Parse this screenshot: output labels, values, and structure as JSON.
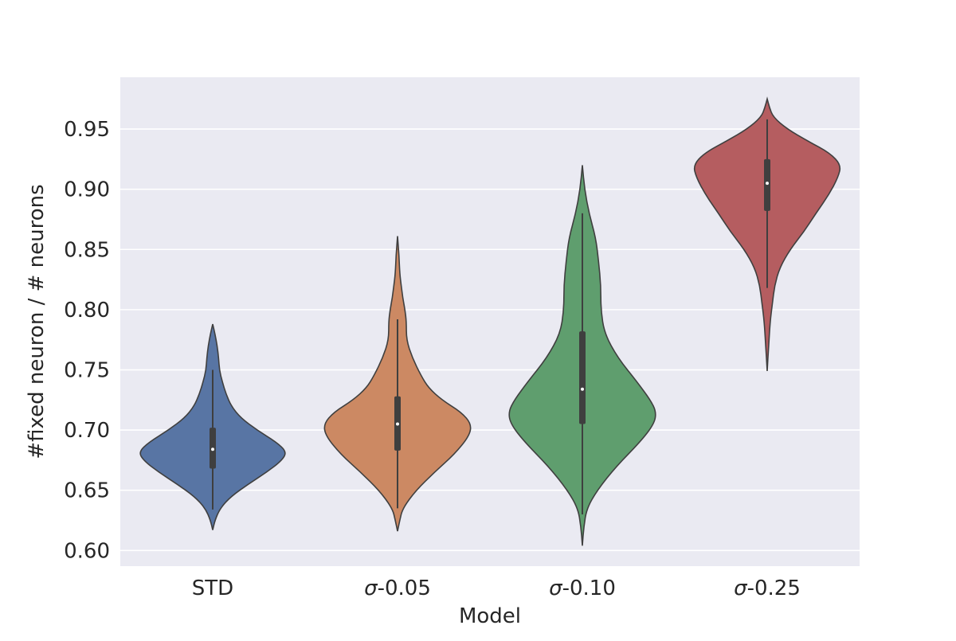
{
  "chart_data": {
    "type": "violin",
    "title": "",
    "xlabel": "Model",
    "ylabel": "#fixed neuron / # neurons",
    "ylim": [
      0.587,
      0.993
    ],
    "yticks": [
      "0.60",
      "0.65",
      "0.70",
      "0.75",
      "0.80",
      "0.85",
      "0.90",
      "0.95"
    ],
    "grid": true,
    "legend": "none",
    "background": "#eaeaf2",
    "categories": [
      {
        "label": "STD",
        "color": "#5875a4",
        "range": [
          0.617,
          0.788
        ],
        "box": {
          "q1": 0.668,
          "median": 0.684,
          "q3": 0.702,
          "whisker_low": 0.634,
          "whisker_high": 0.75
        },
        "profile": [
          [
            0.617,
            0.0
          ],
          [
            0.625,
            0.03
          ],
          [
            0.635,
            0.1
          ],
          [
            0.645,
            0.25
          ],
          [
            0.655,
            0.48
          ],
          [
            0.665,
            0.73
          ],
          [
            0.675,
            0.94
          ],
          [
            0.682,
            1.0
          ],
          [
            0.69,
            0.86
          ],
          [
            0.7,
            0.6
          ],
          [
            0.71,
            0.38
          ],
          [
            0.72,
            0.25
          ],
          [
            0.73,
            0.18
          ],
          [
            0.74,
            0.13
          ],
          [
            0.75,
            0.09
          ],
          [
            0.76,
            0.08
          ],
          [
            0.77,
            0.06
          ],
          [
            0.78,
            0.03
          ],
          [
            0.788,
            0.0
          ]
        ]
      },
      {
        "label": "σ-0.05",
        "color": "#cc8963",
        "range": [
          0.616,
          0.861
        ],
        "box": {
          "q1": 0.683,
          "median": 0.705,
          "q3": 0.728,
          "whisker_low": 0.635,
          "whisker_high": 0.792
        },
        "profile": [
          [
            0.616,
            0.0
          ],
          [
            0.625,
            0.03
          ],
          [
            0.635,
            0.07
          ],
          [
            0.65,
            0.25
          ],
          [
            0.665,
            0.5
          ],
          [
            0.68,
            0.77
          ],
          [
            0.695,
            0.97
          ],
          [
            0.705,
            1.0
          ],
          [
            0.715,
            0.86
          ],
          [
            0.725,
            0.6
          ],
          [
            0.735,
            0.42
          ],
          [
            0.745,
            0.32
          ],
          [
            0.76,
            0.2
          ],
          [
            0.775,
            0.12
          ],
          [
            0.79,
            0.12
          ],
          [
            0.8,
            0.1
          ],
          [
            0.81,
            0.07
          ],
          [
            0.82,
            0.05
          ],
          [
            0.83,
            0.03
          ],
          [
            0.845,
            0.02
          ],
          [
            0.861,
            0.0
          ]
        ]
      },
      {
        "label": "σ-0.10",
        "color": "#5f9e6e",
        "range": [
          0.604,
          0.92
        ],
        "box": {
          "q1": 0.705,
          "median": 0.734,
          "q3": 0.782,
          "whisker_low": 0.63,
          "whisker_high": 0.88
        },
        "profile": [
          [
            0.604,
            0.0
          ],
          [
            0.62,
            0.02
          ],
          [
            0.635,
            0.06
          ],
          [
            0.65,
            0.2
          ],
          [
            0.67,
            0.46
          ],
          [
            0.69,
            0.78
          ],
          [
            0.705,
            0.97
          ],
          [
            0.715,
            1.0
          ],
          [
            0.725,
            0.92
          ],
          [
            0.74,
            0.74
          ],
          [
            0.76,
            0.48
          ],
          [
            0.78,
            0.3
          ],
          [
            0.8,
            0.25
          ],
          [
            0.82,
            0.25
          ],
          [
            0.84,
            0.22
          ],
          [
            0.86,
            0.18
          ],
          [
            0.88,
            0.09
          ],
          [
            0.9,
            0.03
          ],
          [
            0.92,
            0.0
          ]
        ]
      },
      {
        "label": "σ-0.25",
        "color": "#b55d60",
        "range": [
          0.749,
          0.975
        ],
        "box": {
          "q1": 0.882,
          "median": 0.905,
          "q3": 0.925,
          "whisker_low": 0.818,
          "whisker_high": 0.958
        },
        "profile": [
          [
            0.749,
            0.0
          ],
          [
            0.77,
            0.02
          ],
          [
            0.79,
            0.04
          ],
          [
            0.805,
            0.07
          ],
          [
            0.82,
            0.1
          ],
          [
            0.835,
            0.17
          ],
          [
            0.85,
            0.31
          ],
          [
            0.865,
            0.5
          ],
          [
            0.88,
            0.66
          ],
          [
            0.895,
            0.83
          ],
          [
            0.91,
            0.96
          ],
          [
            0.92,
            1.0
          ],
          [
            0.93,
            0.85
          ],
          [
            0.94,
            0.55
          ],
          [
            0.95,
            0.27
          ],
          [
            0.96,
            0.08
          ],
          [
            0.968,
            0.03
          ],
          [
            0.975,
            0.0
          ]
        ]
      }
    ]
  }
}
